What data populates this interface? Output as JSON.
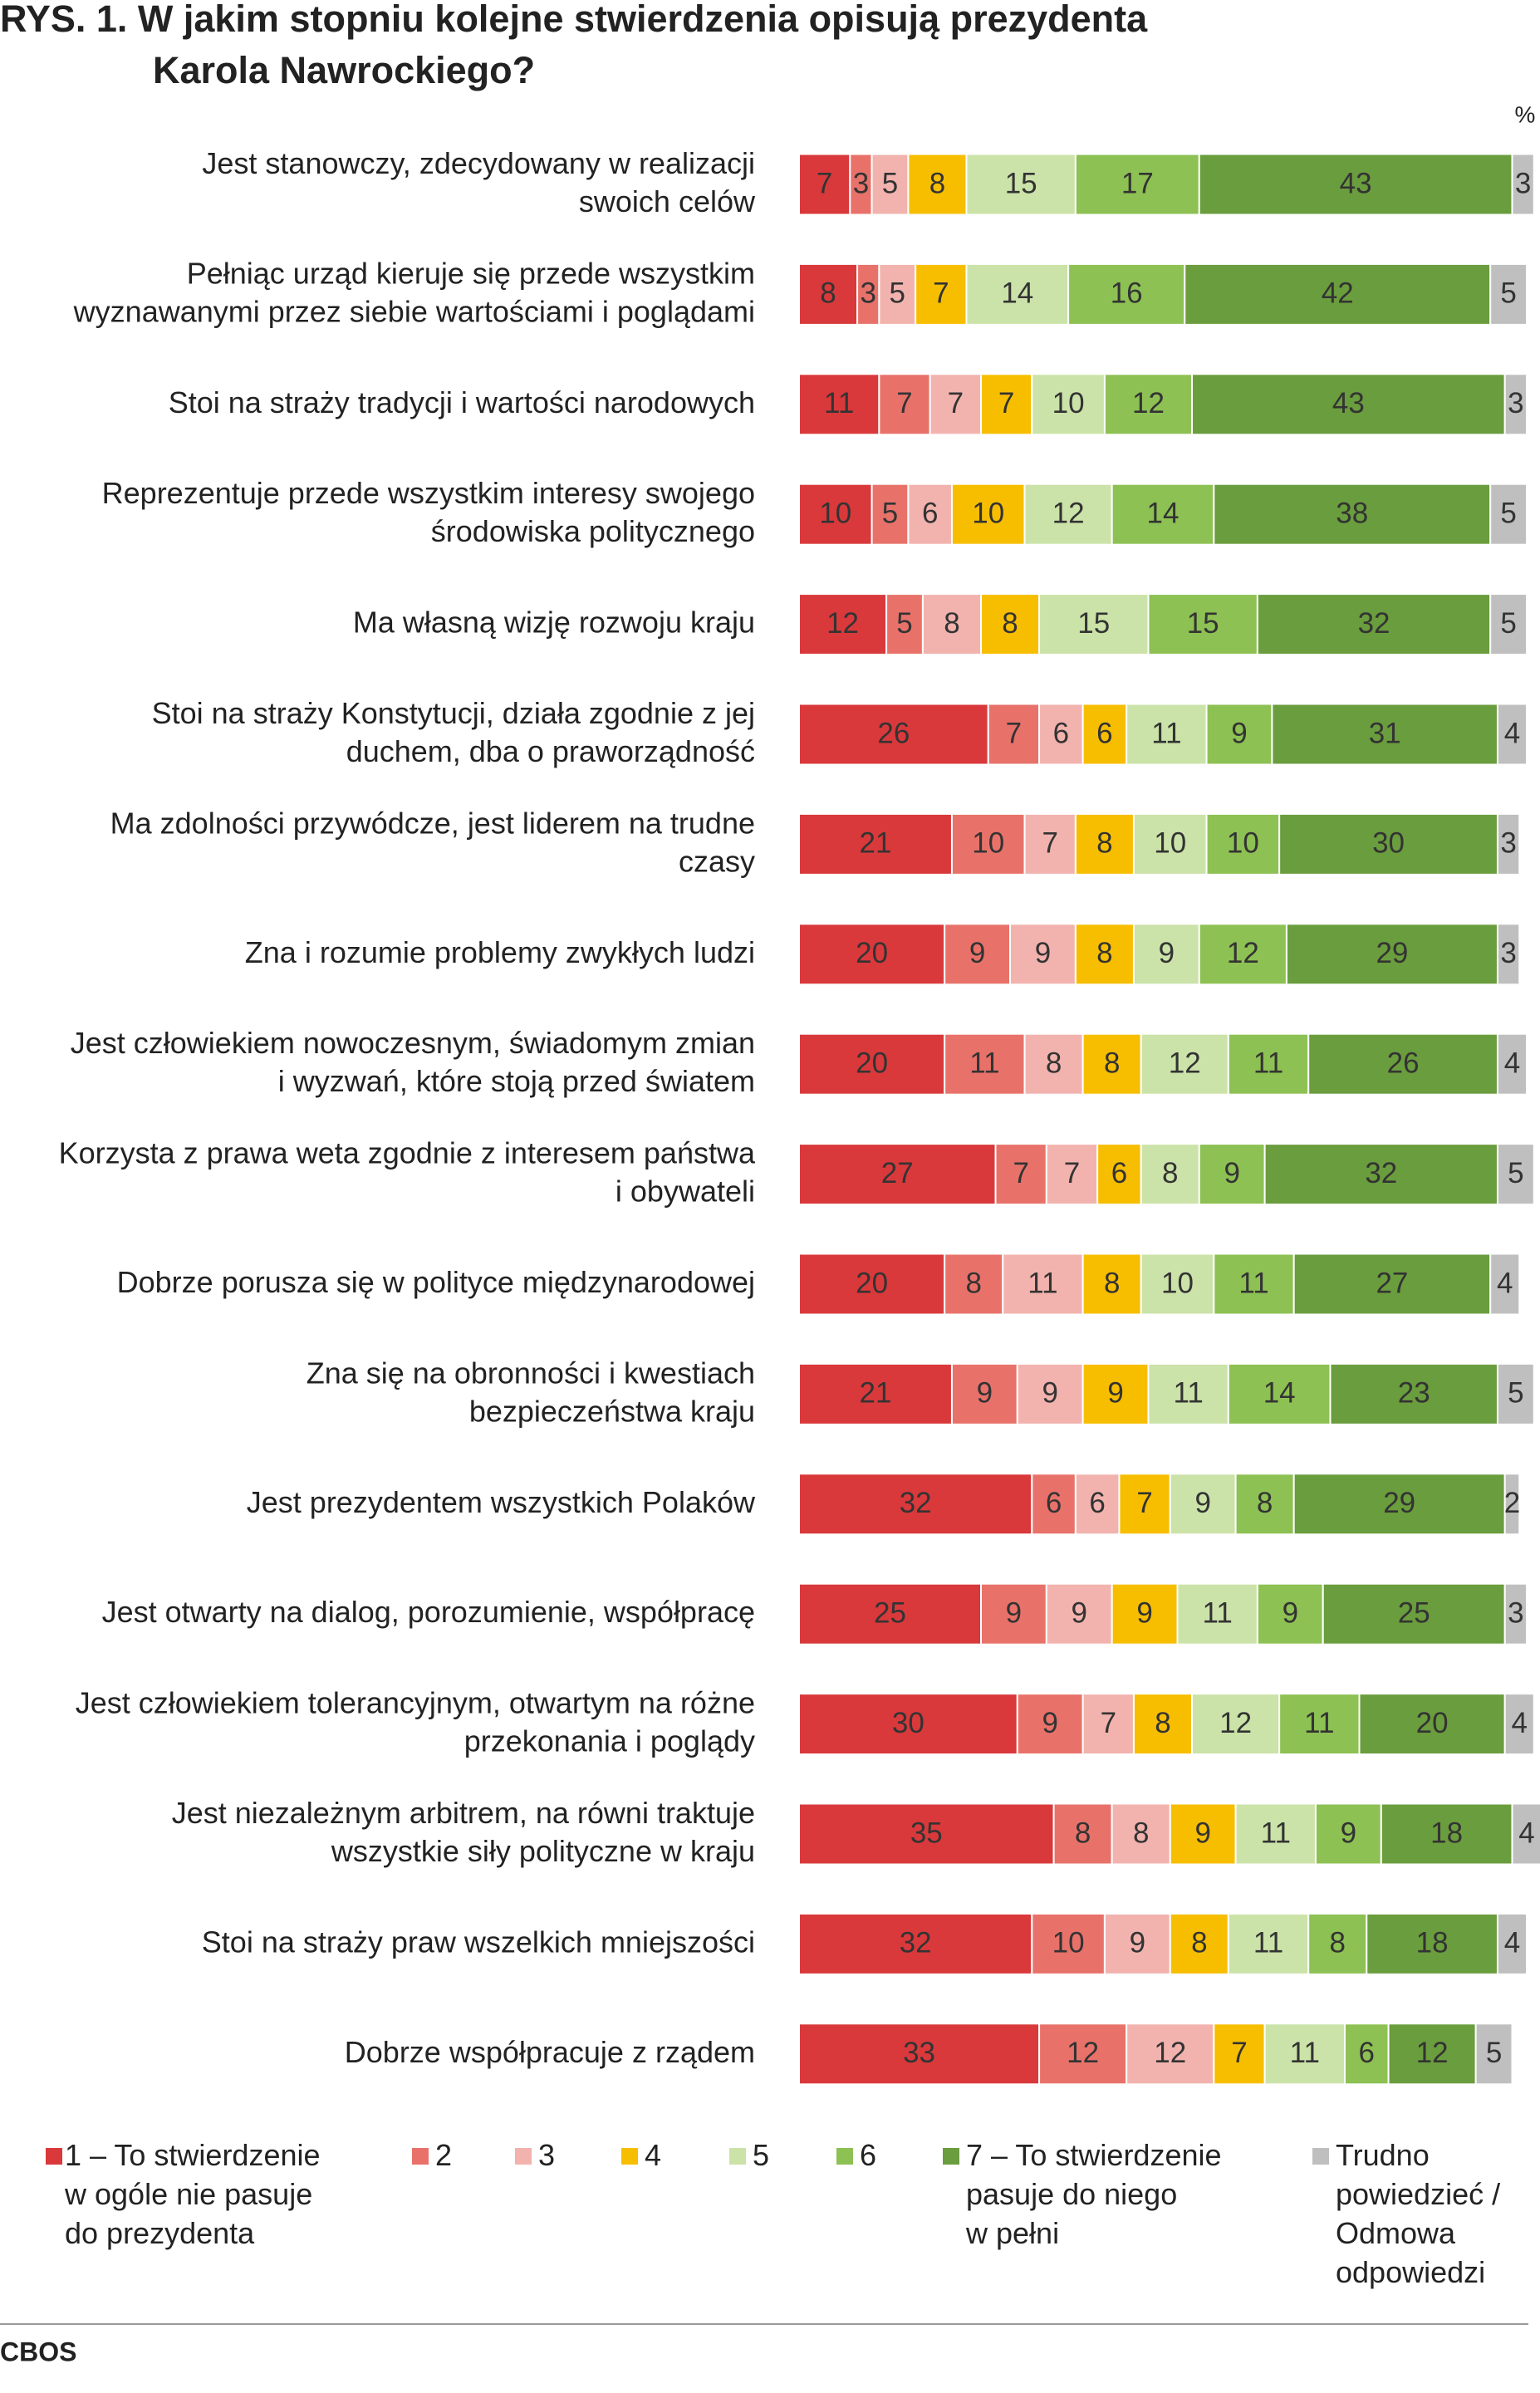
{
  "chart_data": {
    "type": "stacked-bar",
    "title": "RYS. 1. W jakim stopniu kolejne stwierdzenia opisują prezydenta\nKarola Nawrockiego?",
    "unit_label": "%",
    "source": "CBOS",
    "categories": [
      "Jest stanowczy, zdecydowany w realizacji\nswoich celów",
      "Pełniąc urząd kieruje się przede wszystkim\nwyznawanymi przez siebie wartościami i poglądami",
      "Stoi na straży tradycji i wartości narodowych",
      "Reprezentuje przede wszystkim interesy swojego\nśrodowiska politycznego",
      "Ma własną wizję rozwoju kraju",
      "Stoi na straży Konstytucji, działa zgodnie z jej\nduchem, dba o praworządność",
      "Ma zdolności przywódcze, jest liderem na trudne\nczasy",
      "Zna i rozumie problemy zwykłych ludzi",
      "Jest człowiekiem nowoczesnym, świadomym zmian\ni wyzwań, które stoją przed światem",
      "Korzysta z prawa weta zgodnie z interesem państwa\ni obywateli",
      "Dobrze porusza się w polityce międzynarodowej",
      "Zna się na obronności i kwestiach\nbezpieczeństwa kraju",
      "Jest prezydentem wszystkich Polaków",
      "Jest otwarty na dialog, porozumienie, współpracę",
      "Jest człowiekiem tolerancyjnym, otwartym na różne\nprzekonania i poglądy",
      "Jest niezależnym arbitrem, na równi traktuje\nwszystkie siły polityczne w kraju",
      "Stoi na straży praw wszelkich mniejszości",
      "Dobrze współpracuje z rządem"
    ],
    "series": [
      {
        "name": "1 – To stwierdzenie\nw ogóle nie pasuje\ndo prezydenta",
        "color": "#d9393b",
        "values": [
          7,
          8,
          11,
          10,
          12,
          26,
          21,
          20,
          20,
          27,
          20,
          21,
          32,
          25,
          30,
          35,
          32,
          33
        ]
      },
      {
        "name": "2",
        "color": "#e8726a",
        "values": [
          3,
          3,
          7,
          5,
          5,
          7,
          10,
          9,
          11,
          7,
          8,
          9,
          6,
          9,
          9,
          8,
          10,
          12
        ]
      },
      {
        "name": "3",
        "color": "#f2b3ae",
        "values": [
          5,
          5,
          7,
          6,
          8,
          6,
          7,
          9,
          8,
          7,
          11,
          9,
          6,
          9,
          7,
          8,
          9,
          12
        ]
      },
      {
        "name": "4",
        "color": "#f7be00",
        "values": [
          8,
          7,
          7,
          10,
          8,
          6,
          8,
          8,
          8,
          6,
          8,
          9,
          7,
          9,
          8,
          9,
          8,
          7
        ]
      },
      {
        "name": "5",
        "color": "#cbe3a8",
        "values": [
          15,
          14,
          10,
          12,
          15,
          11,
          10,
          9,
          12,
          8,
          10,
          11,
          9,
          11,
          12,
          11,
          11,
          11
        ]
      },
      {
        "name": "6",
        "color": "#8dc153",
        "values": [
          17,
          16,
          12,
          14,
          15,
          9,
          10,
          12,
          11,
          9,
          11,
          14,
          8,
          9,
          11,
          9,
          8,
          6
        ]
      },
      {
        "name": "7 – To stwierdzenie\npasuje do niego\nw pełni",
        "color": "#6a9d3d",
        "values": [
          43,
          42,
          43,
          38,
          32,
          31,
          30,
          29,
          26,
          32,
          27,
          23,
          29,
          25,
          20,
          18,
          18,
          12
        ]
      },
      {
        "name": "Trudno\npowiedzieć /\nOdmowa\nodpowiedzi",
        "color": "#bfbfbf",
        "values": [
          3,
          5,
          3,
          5,
          5,
          4,
          3,
          3,
          4,
          5,
          4,
          5,
          2,
          3,
          4,
          4,
          4,
          5
        ]
      }
    ]
  }
}
